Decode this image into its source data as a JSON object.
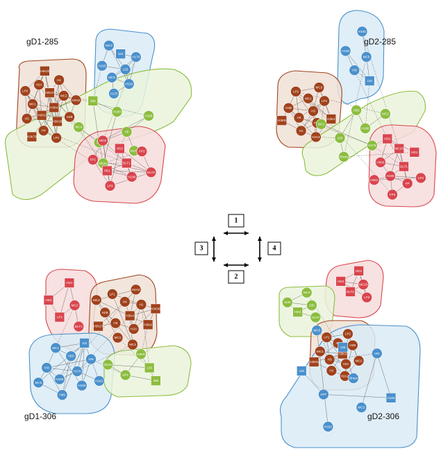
{
  "colors": {
    "brown": "#a0421c",
    "blue": "#4a90cc",
    "green": "#8cbd3f",
    "red": "#d9454d",
    "brown_hull": "#efe1d6",
    "blue_hull": "#d9ebf6",
    "green_hull": "#eaf3dc",
    "red_hull": "#f6dcdc",
    "edge": "#333333"
  },
  "legend": {
    "labels": [
      "1",
      "2",
      "3",
      "4"
    ],
    "meaning": "arrows between panels"
  },
  "panels": [
    {
      "id": "gd1-285",
      "title": "gD1-285",
      "groups": [
        {
          "color": "brown",
          "nodes": [
            {
              "label": "H3K4",
              "shape": "square"
            },
            {
              "label": "H3K9",
              "shape": "square"
            },
            {
              "label": "H3K27",
              "shape": "square"
            },
            {
              "label": "H3K36",
              "shape": "square"
            },
            {
              "label": "MC1",
              "shape": "circle"
            },
            {
              "label": "MC2",
              "shape": "circle"
            },
            {
              "label": "H4",
              "shape": "circle"
            },
            {
              "label": "H2A",
              "shape": "circle"
            },
            {
              "label": "H2B",
              "shape": "circle"
            },
            {
              "label": "H3",
              "shape": "circle"
            },
            {
              "label": "H1",
              "shape": "circle"
            },
            {
              "label": "LP1",
              "shape": "circle"
            },
            {
              "label": "LP2",
              "shape": "circle"
            },
            {
              "label": "H2AZ",
              "shape": "circle"
            },
            {
              "label": "H3K79",
              "shape": "square"
            },
            {
              "label": "H4K20",
              "shape": "square"
            }
          ]
        },
        {
          "color": "blue",
          "nodes": [
            {
              "label": "125",
              "shape": "circle"
            },
            {
              "label": "MC5",
              "shape": "circle"
            },
            {
              "label": "115",
              "shape": "square"
            },
            {
              "label": "H182",
              "shape": "circle"
            },
            {
              "label": "H193",
              "shape": "circle"
            },
            {
              "label": "H170",
              "shape": "circle"
            },
            {
              "label": "H175",
              "shape": "circle"
            },
            {
              "label": "MC3",
              "shape": "circle"
            }
          ]
        },
        {
          "color": "green",
          "nodes": [
            {
              "label": "H5",
              "shape": "circle"
            },
            {
              "label": "105",
              "shape": "circle"
            },
            {
              "label": "H180",
              "shape": "circle"
            },
            {
              "label": "H176",
              "shape": "circle"
            },
            {
              "label": "MC4",
              "shape": "circle"
            },
            {
              "label": "H185",
              "shape": "circle"
            },
            {
              "label": "Dhrsx",
              "shape": "circle"
            },
            {
              "label": "455",
              "shape": "square"
            }
          ]
        },
        {
          "color": "red",
          "nodes": [
            {
              "label": "DLT1",
              "shape": "square"
            },
            {
              "label": "HD1",
              "shape": "square"
            },
            {
              "label": "HD2",
              "shape": "square"
            },
            {
              "label": "H190",
              "shape": "circle"
            },
            {
              "label": "FP1",
              "shape": "circle"
            },
            {
              "label": "FP2",
              "shape": "circle"
            },
            {
              "label": "LP3",
              "shape": "circle"
            },
            {
              "label": "MC6",
              "shape": "circle"
            },
            {
              "label": "DLT2",
              "shape": "circle"
            }
          ]
        }
      ]
    },
    {
      "id": "gd2-285",
      "title": "gD2-285",
      "groups": [
        {
          "color": "blue",
          "nodes": [
            {
              "label": "MC5",
              "shape": "circle"
            },
            {
              "label": "VID",
              "shape": "circle"
            },
            {
              "label": "H182",
              "shape": "circle"
            },
            {
              "label": "115",
              "shape": "square"
            },
            {
              "label": "H193",
              "shape": "circle"
            }
          ]
        },
        {
          "color": "brown",
          "nodes": [
            {
              "label": "H3",
              "shape": "circle"
            },
            {
              "label": "H4",
              "shape": "circle"
            },
            {
              "label": "MC1",
              "shape": "circle"
            },
            {
              "label": "H2A",
              "shape": "circle"
            },
            {
              "label": "H2B",
              "shape": "circle"
            },
            {
              "label": "LP1",
              "shape": "circle"
            },
            {
              "label": "H1",
              "shape": "circle"
            },
            {
              "label": "LP2",
              "shape": "circle"
            },
            {
              "label": "H3K4",
              "shape": "square"
            },
            {
              "label": "H3K9",
              "shape": "square"
            },
            {
              "label": "MC3",
              "shape": "circle"
            },
            {
              "label": "H2AZ",
              "shape": "circle"
            }
          ]
        },
        {
          "color": "green",
          "nodes": [
            {
              "label": "H180",
              "shape": "circle"
            },
            {
              "label": "105",
              "shape": "circle"
            },
            {
              "label": "HD5",
              "shape": "circle"
            },
            {
              "label": "H175",
              "shape": "circle"
            },
            {
              "label": "MC1",
              "shape": "circle"
            },
            {
              "label": "MC2",
              "shape": "circle"
            },
            {
              "label": "Dhrsx",
              "shape": "circle"
            }
          ]
        },
        {
          "color": "red",
          "nodes": [
            {
              "label": "DLT1",
              "shape": "square"
            },
            {
              "label": "H190",
              "shape": "circle"
            },
            {
              "label": "MC23",
              "shape": "square"
            },
            {
              "label": "FP",
              "shape": "circle"
            },
            {
              "label": "H300",
              "shape": "circle"
            },
            {
              "label": "HD1",
              "shape": "square"
            },
            {
              "label": "FP3",
              "shape": "circle"
            },
            {
              "label": "HD2",
              "shape": "square"
            },
            {
              "label": "LP3",
              "shape": "circle"
            },
            {
              "label": "H301",
              "shape": "circle"
            }
          ]
        }
      ]
    },
    {
      "id": "gd1-306",
      "title": "gD1-306",
      "groups": [
        {
          "color": "red",
          "nodes": [
            {
              "label": "MC2",
              "shape": "circle"
            },
            {
              "label": "LP2",
              "shape": "square"
            },
            {
              "label": "HD1",
              "shape": "square"
            },
            {
              "label": "DLT1",
              "shape": "circle"
            },
            {
              "label": "HD2",
              "shape": "square"
            }
          ]
        },
        {
          "color": "brown",
          "nodes": [
            {
              "label": "H3K4",
              "shape": "square"
            },
            {
              "label": "H3",
              "shape": "circle"
            },
            {
              "label": "H4",
              "shape": "circle"
            },
            {
              "label": "H2A",
              "shape": "circle"
            },
            {
              "label": "H2B",
              "shape": "circle"
            },
            {
              "label": "H1",
              "shape": "circle"
            },
            {
              "label": "MC1",
              "shape": "circle"
            },
            {
              "label": "LP1",
              "shape": "circle"
            },
            {
              "label": "H3K9",
              "shape": "square"
            },
            {
              "label": "H3K27",
              "shape": "square"
            },
            {
              "label": "H2AZ",
              "shape": "circle"
            },
            {
              "label": "MC3",
              "shape": "circle"
            },
            {
              "label": "MC4",
              "shape": "circle"
            },
            {
              "label": "H3K36",
              "shape": "square"
            }
          ]
        },
        {
          "color": "blue",
          "nodes": [
            {
              "label": "H170",
              "shape": "circle"
            },
            {
              "label": "H185",
              "shape": "circle"
            },
            {
              "label": "HD5",
              "shape": "circle"
            },
            {
              "label": "H193",
              "shape": "circle"
            },
            {
              "label": "VID",
              "shape": "circle"
            },
            {
              "label": "105",
              "shape": "circle"
            },
            {
              "label": "H69",
              "shape": "circle"
            },
            {
              "label": "MC1",
              "shape": "circle"
            },
            {
              "label": "H1K2",
              "shape": "circle"
            },
            {
              "label": "MC5",
              "shape": "circle"
            },
            {
              "label": "115",
              "shape": "square"
            }
          ]
        },
        {
          "color": "green",
          "nodes": [
            {
              "label": "125",
              "shape": "square"
            },
            {
              "label": "APT",
              "shape": "circle"
            },
            {
              "label": "H3K6",
              "shape": "circle"
            },
            {
              "label": "455",
              "shape": "square"
            },
            {
              "label": "Dhrsx",
              "shape": "circle"
            }
          ]
        }
      ]
    },
    {
      "id": "gd2-306",
      "title": "gD2-306",
      "groups": [
        {
          "color": "red",
          "nodes": [
            {
              "label": "MC23",
              "shape": "circle"
            },
            {
              "label": "DLT1",
              "shape": "square"
            },
            {
              "label": "HD1",
              "shape": "square"
            },
            {
              "label": "LP3",
              "shape": "circle"
            },
            {
              "label": "HD2",
              "shape": "square"
            }
          ]
        },
        {
          "color": "green",
          "nodes": [
            {
              "label": "105",
              "shape": "circle"
            },
            {
              "label": "HD2",
              "shape": "square"
            },
            {
              "label": "MC3",
              "shape": "circle"
            },
            {
              "label": "H170",
              "shape": "circle"
            },
            {
              "label": "1105",
              "shape": "circle"
            }
          ]
        },
        {
          "color": "brown",
          "nodes": [
            {
              "label": "H3K4",
              "shape": "square"
            },
            {
              "label": "H3",
              "shape": "circle"
            },
            {
              "label": "H4",
              "shape": "circle"
            },
            {
              "label": "H2A",
              "shape": "circle"
            },
            {
              "label": "MC1",
              "shape": "circle"
            },
            {
              "label": "H2B",
              "shape": "circle"
            },
            {
              "label": "H1",
              "shape": "circle"
            },
            {
              "label": "LP1",
              "shape": "circle"
            },
            {
              "label": "MC2",
              "shape": "circle"
            },
            {
              "label": "H3K9",
              "shape": "square"
            },
            {
              "label": "LP2",
              "shape": "circle"
            },
            {
              "label": "H2AZ",
              "shape": "circle"
            }
          ]
        },
        {
          "color": "blue",
          "nodes": [
            {
              "label": "Dhrsx",
              "shape": "circle"
            },
            {
              "label": "APT",
              "shape": "circle"
            },
            {
              "label": "125",
              "shape": "square"
            },
            {
              "label": "MC2",
              "shape": "circle"
            },
            {
              "label": "115",
              "shape": "square"
            },
            {
              "label": "VID",
              "shape": "circle"
            },
            {
              "label": "H182",
              "shape": "circle"
            },
            {
              "label": "MC5",
              "shape": "circle"
            },
            {
              "label": "H193",
              "shape": "square"
            }
          ]
        }
      ]
    }
  ]
}
